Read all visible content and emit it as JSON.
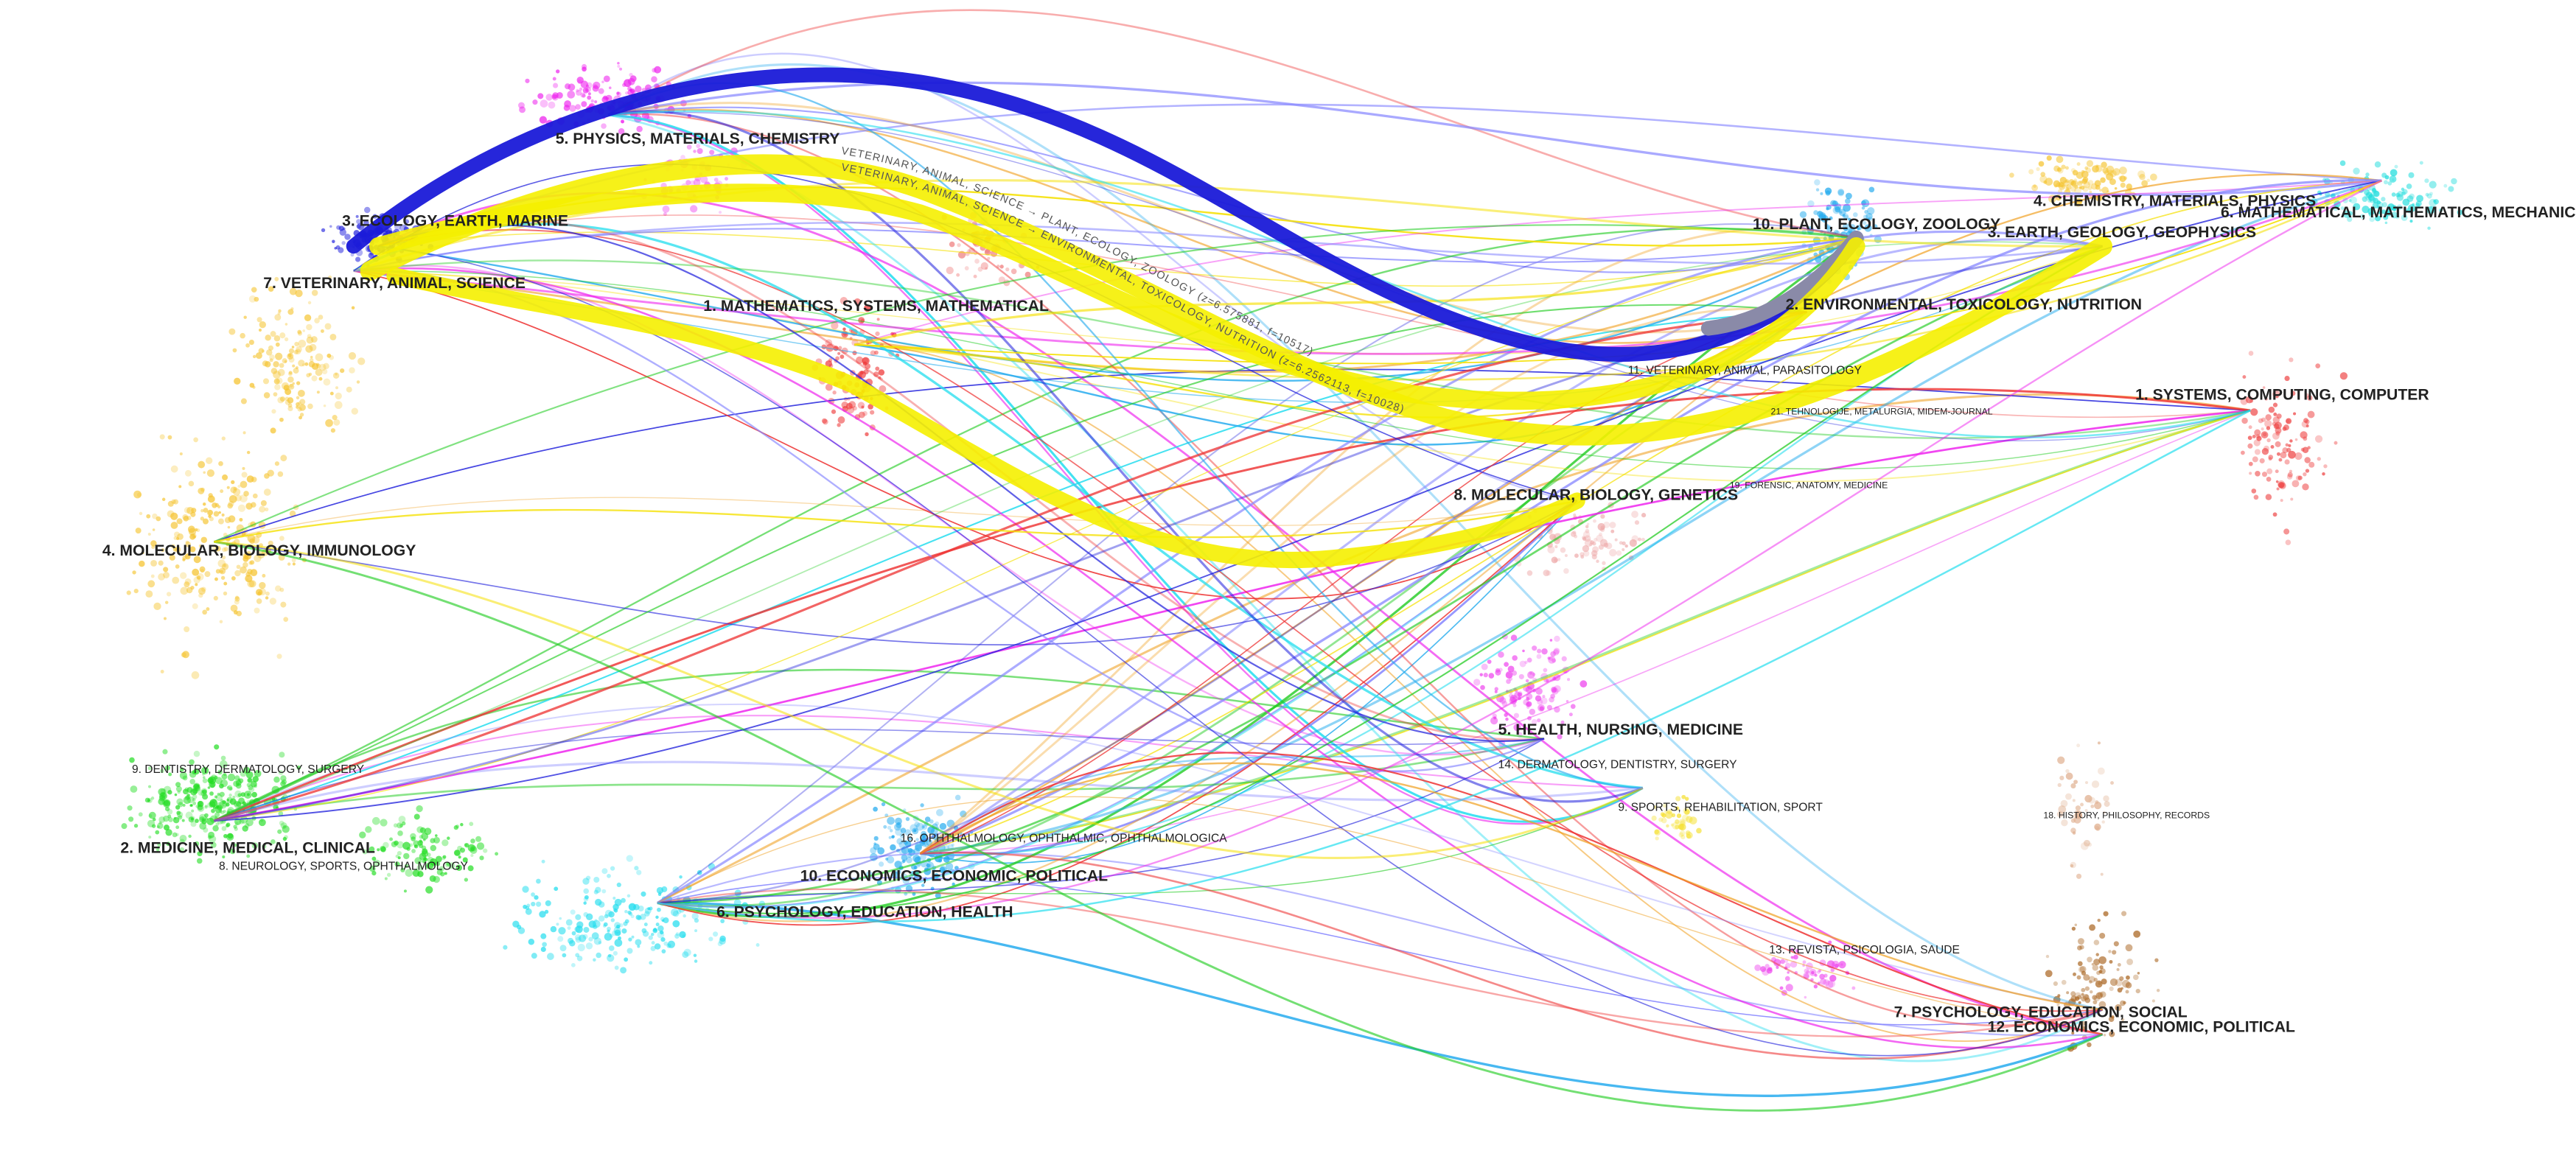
{
  "citing_map": {
    "labels": [
      "5. PHYSICS, MATERIALS, CHEMISTRY",
      "3. ECOLOGY, EARTH, MARINE",
      "7. VETERINARY, ANIMAL, SCIENCE",
      "1. MATHEMATICS, SYSTEMS, MATHEMATICAL",
      "4. MOLECULAR, BIOLOGY, IMMUNOLOGY",
      "9. DENTISTRY, DERMATOLOGY, SURGERY",
      "2. MEDICINE, MEDICAL, CLINICAL",
      "8. NEUROLOGY, SPORTS, OPHTHALMOLOGY",
      "16. OPHTHALMOLOGY, OPHTHALMIC, OPHTHALMOLOGICA",
      "10. ECONOMICS, ECONOMIC, POLITICAL",
      "6. PSYCHOLOGY, EDUCATION, HEALTH"
    ]
  },
  "cited_map": {
    "labels": [
      "4. CHEMISTRY, MATERIALS, PHYSICS",
      "6. MATHEMATICAL, MATHEMATICS, MECHANICS",
      "10. PLANT, ECOLOGY, ZOOLOGY",
      "3. EARTH, GEOLOGY, GEOPHYSICS",
      "2. ENVIRONMENTAL, TOXICOLOGY, NUTRITION",
      "11. VETERINARY, ANIMAL, PARASITOLOGY",
      "1. SYSTEMS, COMPUTING, COMPUTER",
      "21. TEHNOLOGIJE, METALURGIA, MIDEM-JOURNAL",
      "19. FORENSIC, ANATOMY, MEDICINE",
      "8. MOLECULAR, BIOLOGY, GENETICS",
      "5. HEALTH, NURSING, MEDICINE",
      "14. DERMATOLOGY, DENTISTRY, SURGERY",
      "9. SPORTS, REHABILITATION, SPORT",
      "18. HISTORY, PHILOSOPHY, RECORDS",
      "13. REVISTA, PSICOLOGIA, SAUDE",
      "7. PSYCHOLOGY, EDUCATION, SOCIAL",
      "12. ECONOMICS, ECONOMIC, POLITICAL"
    ]
  },
  "links": [
    "VETERINARY, ANIMAL, SCIENCE → PLANT, ECOLOGY, ZOOLOGY (z=6.575881, f=10517)",
    "VETERINARY, ANIMAL, SCIENCE → ENVIRONMENTAL, TOXICOLOGY, NUTRITION (z=6.2562113, f=10028)"
  ]
}
